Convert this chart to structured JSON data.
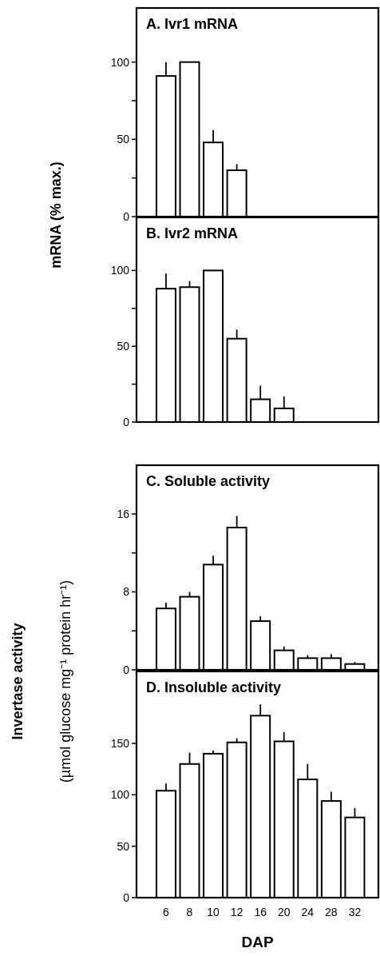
{
  "chart_data": [
    {
      "type": "bar",
      "title": "A. Ivr1 mRNA",
      "ylabel": "mRNA  (% max.)",
      "categories": [
        "6",
        "8",
        "10",
        "12",
        "16",
        "20",
        "24",
        "28",
        "32"
      ],
      "values": [
        91,
        100,
        48,
        30,
        null,
        null,
        null,
        null,
        null
      ],
      "errors": [
        [
          91,
          100
        ],
        null,
        [
          48,
          56
        ],
        [
          30,
          34
        ],
        null,
        null,
        null,
        null,
        null
      ],
      "color": "#ffffff",
      "ylim": [
        0,
        135
      ],
      "yticks": [
        0,
        {
          "value": 25,
          "label": null
        },
        50,
        {
          "value": 75,
          "label": null
        },
        100
      ],
      "tick_labels": "y"
    },
    {
      "type": "bar",
      "title": "B. Ivr2 mRNA",
      "categories": [
        "6",
        "8",
        "10",
        "12",
        "16",
        "20",
        "24",
        "28",
        "32"
      ],
      "values": [
        88,
        89,
        100,
        55,
        15,
        9,
        null,
        null,
        null
      ],
      "errors": [
        [
          88,
          98
        ],
        [
          89,
          93
        ],
        null,
        [
          55,
          61
        ],
        [
          15,
          24
        ],
        [
          9,
          17
        ],
        null,
        null,
        null
      ],
      "color": "#ffffff",
      "ylim": [
        0,
        135
      ],
      "yticks": [
        0,
        {
          "value": 25,
          "label": null
        },
        50,
        {
          "value": 75,
          "label": null
        },
        100
      ],
      "tick_labels": "y"
    },
    {
      "type": "bar",
      "title": "C. Soluble activity",
      "ylabel": "Invertase activity\n(µmol glucose mg⁻¹ protein hr⁻¹)",
      "categories": [
        "6",
        "8",
        "10",
        "12",
        "16",
        "20",
        "24",
        "28",
        "32"
      ],
      "values": [
        6.3,
        7.5,
        10.8,
        14.6,
        5.0,
        2.0,
        1.2,
        1.2,
        0.6
      ],
      "errors": [
        [
          6.3,
          6.9
        ],
        [
          7.5,
          8.0
        ],
        [
          10.8,
          11.7
        ],
        [
          14.6,
          15.8
        ],
        [
          5.0,
          5.5
        ],
        [
          2.0,
          2.4
        ],
        [
          1.2,
          1.5
        ],
        [
          1.2,
          1.6
        ],
        [
          0.6,
          0.8
        ]
      ],
      "color": "#ffffff",
      "ylim": [
        0,
        21
      ],
      "yticks": [
        0,
        {
          "value": 4,
          "label": null
        },
        8,
        {
          "value": 12,
          "label": null
        },
        16
      ],
      "tick_labels": "y"
    },
    {
      "type": "bar",
      "title": "D. Insoluble activity",
      "xlabel": "DAP",
      "categories": [
        "6",
        "8",
        "10",
        "12",
        "16",
        "20",
        "24",
        "28",
        "32"
      ],
      "values": [
        104,
        130,
        140,
        151,
        177,
        152,
        115,
        94,
        78
      ],
      "errors": [
        [
          104,
          111
        ],
        [
          130,
          141
        ],
        [
          140,
          143
        ],
        [
          151,
          155
        ],
        [
          177,
          188
        ],
        [
          152,
          161
        ],
        [
          115,
          130
        ],
        [
          94,
          103
        ],
        [
          78,
          87
        ]
      ],
      "color": "#ffffff",
      "ylim": [
        0,
        220
      ],
      "yticks": [
        0,
        50,
        100,
        150
      ]
    }
  ]
}
